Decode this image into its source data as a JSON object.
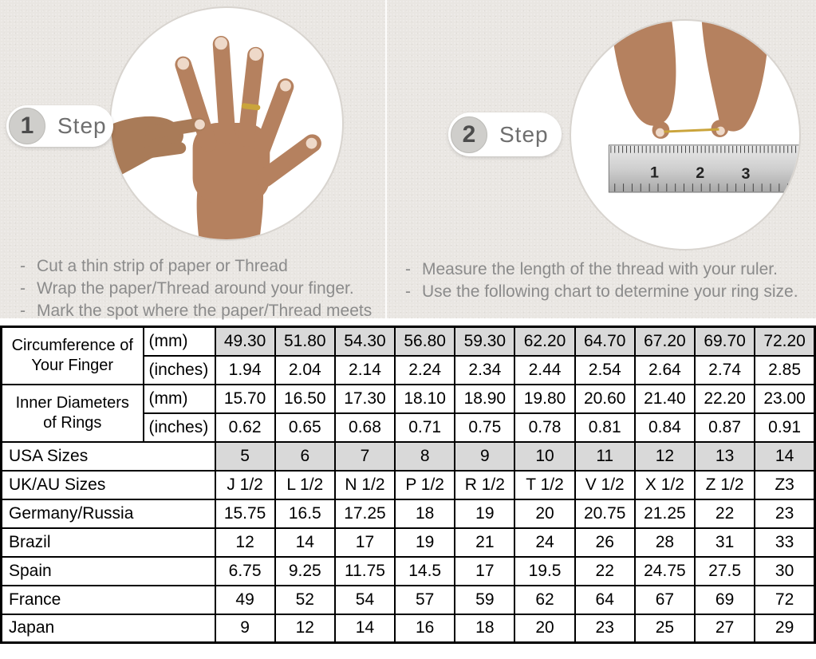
{
  "bullet_char": "-",
  "steps": [
    {
      "number": "1",
      "label": "Step",
      "instructions": [
        "Cut a thin strip of paper or Thread",
        "Wrap the paper/Thread around your finger.",
        "Mark the spot where the paper/Thread meets"
      ]
    },
    {
      "number": "2",
      "label": "Step",
      "instructions": [
        "Measure the length of the thread with your ruler.",
        "Use the following chart to determine your ring size."
      ]
    }
  ],
  "photos": [
    {
      "name": "hand-with-ring-photo",
      "description": "hand with fingers spread, second hand marking thread at ring finger"
    },
    {
      "name": "measuring-thread-photo",
      "description": "two hands holding thread above a ruler",
      "ruler_numbers": [
        "1",
        "2",
        "3"
      ]
    }
  ],
  "table": {
    "groups": [
      {
        "label": "Circumference of Your Finger",
        "subrows": [
          {
            "unit": "(mm)",
            "shaded": true,
            "values": [
              "49.30",
              "51.80",
              "54.30",
              "56.80",
              "59.30",
              "62.20",
              "64.70",
              "67.20",
              "69.70",
              "72.20"
            ]
          },
          {
            "unit": "(inches)",
            "shaded": false,
            "values": [
              "1.94",
              "2.04",
              "2.14",
              "2.24",
              "2.34",
              "2.44",
              "2.54",
              "2.64",
              "2.74",
              "2.85"
            ]
          }
        ]
      },
      {
        "label": "Inner Diameters of Rings",
        "subrows": [
          {
            "unit": "(mm)",
            "shaded": false,
            "values": [
              "15.70",
              "16.50",
              "17.30",
              "18.10",
              "18.90",
              "19.80",
              "20.60",
              "21.40",
              "22.20",
              "23.00"
            ]
          },
          {
            "unit": "(inches)",
            "shaded": false,
            "values": [
              "0.62",
              "0.65",
              "0.68",
              "0.71",
              "0.75",
              "0.78",
              "0.81",
              "0.84",
              "0.87",
              "0.91"
            ]
          }
        ]
      }
    ],
    "size_rows": [
      {
        "label": "USA Sizes",
        "shaded": true,
        "values": [
          "5",
          "6",
          "7",
          "8",
          "9",
          "10",
          "11",
          "12",
          "13",
          "14"
        ]
      },
      {
        "label": "UK/AU Sizes",
        "shaded": false,
        "values": [
          "J 1/2",
          "L 1/2",
          "N 1/2",
          "P 1/2",
          "R 1/2",
          "T 1/2",
          "V 1/2",
          "X 1/2",
          "Z 1/2",
          "Z3"
        ]
      },
      {
        "label": "Germany/Russia",
        "shaded": false,
        "values": [
          "15.75",
          "16.5",
          "17.25",
          "18",
          "19",
          "20",
          "20.75",
          "21.25",
          "22",
          "23"
        ]
      },
      {
        "label": "Brazil",
        "shaded": false,
        "values": [
          "12",
          "14",
          "17",
          "19",
          "21",
          "24",
          "26",
          "28",
          "31",
          "33"
        ]
      },
      {
        "label": "Spain",
        "shaded": false,
        "values": [
          "6.75",
          "9.25",
          "11.75",
          "14.5",
          "17",
          "19.5",
          "22",
          "24.75",
          "27.5",
          "30"
        ]
      },
      {
        "label": "France",
        "shaded": false,
        "values": [
          "49",
          "52",
          "54",
          "57",
          "59",
          "62",
          "64",
          "67",
          "69",
          "72"
        ]
      },
      {
        "label": "Japan",
        "shaded": false,
        "values": [
          "9",
          "12",
          "14",
          "16",
          "18",
          "20",
          "23",
          "25",
          "27",
          "29"
        ]
      }
    ]
  },
  "colors": {
    "top_background": "#e9e6e2",
    "shaded_cell": "#d9d9d9",
    "table_border": "#000000",
    "instruction_text": "#8b8b8b",
    "thread_gold": "#caa43b"
  }
}
